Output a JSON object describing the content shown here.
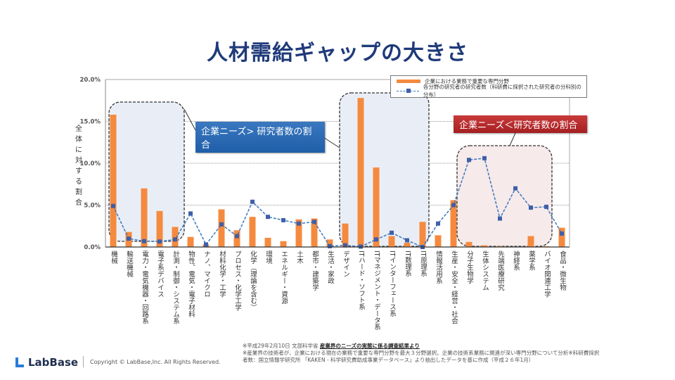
{
  "title": "人材需給ギャップの大きさ",
  "chart_data": {
    "type": "bar",
    "title": "人材需給ギャップの大きさ",
    "ylabel": "全体に対する割合",
    "ylim": [
      0,
      20
    ],
    "yticks": [
      "0.0%",
      "5.0%",
      "10.0%",
      "15.0%",
      "20.0%"
    ],
    "grid": true,
    "legend_position": "top-right",
    "categories": [
      "機械",
      "輸送機械",
      "電力・電気機器・回路系",
      "電子系デバイス",
      "計測・制御・システム系",
      "物性、電気・電子材料",
      "ナノ、マイクロ",
      "材料化学・工学",
      "プロセス・化学工学",
      "化学（理論を含む）",
      "環境",
      "エネルギー・資源",
      "土木",
      "都市・建築学",
      "生活・家政",
      "デザイン",
      "ITハード・ソフト系",
      "ITマネジメント・データ系",
      "ITインターフェース系",
      "IT数理系",
      "IT原理系",
      "情報活用系",
      "生産・安全・経営・社会",
      "分子生物学",
      "生体システム",
      "先端医療研究",
      "神経系",
      "薬学系",
      "バイオ関連工学",
      "食品・微生物"
    ],
    "series": [
      {
        "name": "企業における業務で重要な専門分野",
        "type": "bar",
        "color": "#f58a3f",
        "values": [
          15.8,
          1.8,
          7.0,
          4.3,
          2.4,
          1.2,
          0.3,
          4.5,
          2.0,
          3.6,
          1.1,
          0.7,
          3.3,
          3.4,
          0.9,
          2.8,
          17.8,
          9.5,
          1.3,
          0.5,
          3.0,
          1.4,
          5.6,
          0.6,
          0.2,
          0.1,
          0.0,
          1.3,
          0.1,
          2.3
        ]
      },
      {
        "name": "各分野の研究者の研究者数（科研費に採択された研究者の分科別の分布）",
        "type": "line",
        "color": "#3a78c0",
        "values": [
          4.9,
          1.0,
          0.7,
          0.65,
          0.9,
          4.0,
          0.3,
          2.7,
          1.3,
          5.4,
          3.6,
          3.2,
          2.8,
          3.0,
          0.1,
          0.2,
          0.05,
          0.9,
          1.7,
          0.8,
          0.0,
          2.8,
          5.0,
          10.4,
          10.6,
          3.4,
          7.0,
          4.7,
          4.8,
          1.6
        ]
      }
    ],
    "annotations": [
      "企業ニーズ> 研究者数の割合",
      "企業ニーズ＜研究者数の割合"
    ]
  },
  "notes": {
    "line1_prefix": "※平成29年2月10日 文部科学省 ",
    "line1_link": "産業界のニーズの実態に係る調査結果より",
    "line2": "※産業界の技術者が、企業における現在の業務で重要な専門分野を最大３分野選択。企業の技術系業務に関連が深い専門分野について分析※科研費採択者数：国立情報学研究所 「KAKEN - 科学研究費助成事業データベース」より抽出したデータを基に作成（平成２６年1月）"
  },
  "footer": {
    "logo": "LabBase",
    "copyright": "Copyright ©  LabBase,Inc. All Rights Reserved."
  }
}
